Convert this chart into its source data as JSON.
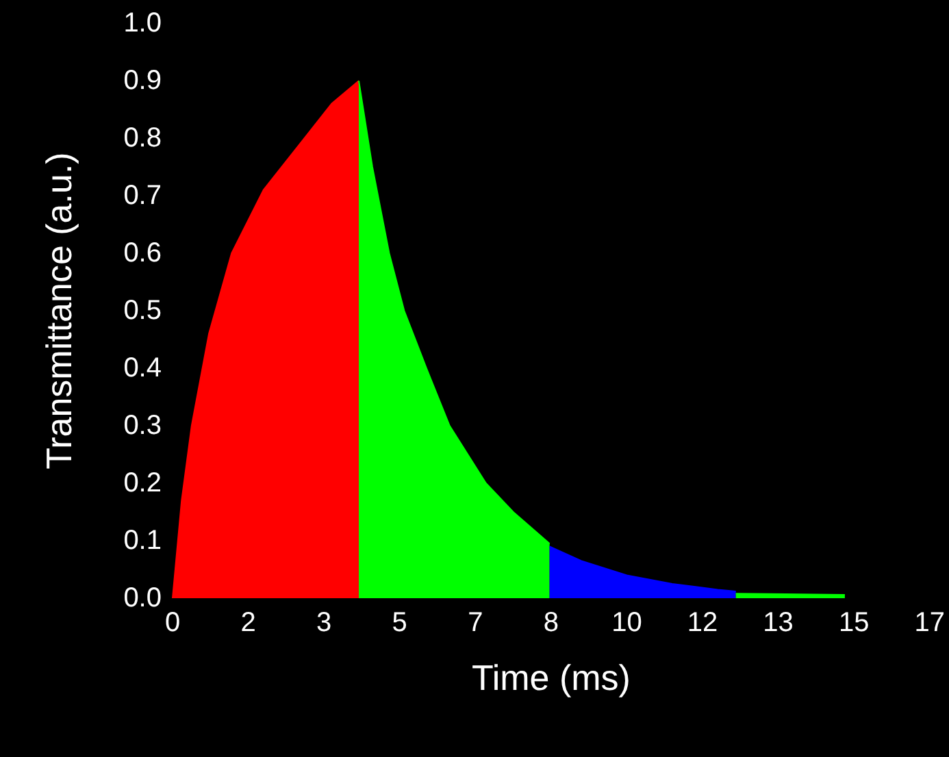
{
  "chart_data": {
    "type": "area",
    "xlabel": "Time (ms)",
    "ylabel": "Transmittance (a.u.)",
    "xlim": [
      0,
      16.667
    ],
    "ylim": [
      0,
      1
    ],
    "xticks": [
      {
        "value": 0,
        "label": "0"
      },
      {
        "value": 1.667,
        "label": "2"
      },
      {
        "value": 3.333,
        "label": "3"
      },
      {
        "value": 5,
        "label": "5"
      },
      {
        "value": 6.667,
        "label": "7"
      },
      {
        "value": 8.333,
        "label": "8"
      },
      {
        "value": 10,
        "label": "10"
      },
      {
        "value": 11.667,
        "label": "12"
      },
      {
        "value": 13.333,
        "label": "13"
      },
      {
        "value": 15,
        "label": "15"
      },
      {
        "value": 16.667,
        "label": "17"
      }
    ],
    "yticks": [
      {
        "value": 0,
        "label": "0.0"
      },
      {
        "value": 0.1,
        "label": "0.1"
      },
      {
        "value": 0.2,
        "label": "0.2"
      },
      {
        "value": 0.3,
        "label": "0.3"
      },
      {
        "value": 0.4,
        "label": "0.4"
      },
      {
        "value": 0.5,
        "label": "0.5"
      },
      {
        "value": 0.6,
        "label": "0.6"
      },
      {
        "value": 0.7,
        "label": "0.7"
      },
      {
        "value": 0.8,
        "label": "0.8"
      },
      {
        "value": 0.9,
        "label": "0.9"
      },
      {
        "value": 1,
        "label": "1.0"
      }
    ],
    "grid": false,
    "series": [
      {
        "color": "#ff0000",
        "x": [
          0,
          0.2,
          0.42,
          0.8,
          1.3,
          2,
          2.9,
          3.5,
          4.1
        ],
        "values": [
          0,
          0.17,
          0.3,
          0.46,
          0.6,
          0.71,
          0.8,
          0.86,
          0.9
        ]
      },
      {
        "color": "#00ff00",
        "x": [
          4.1,
          4.4,
          4.77,
          5.1,
          5.59,
          6.1,
          6.9,
          7.5,
          8.3
        ],
        "values": [
          0.9,
          0.75,
          0.6,
          0.5,
          0.4,
          0.3,
          0.2,
          0.15,
          0.095
        ]
      },
      {
        "color": "#0000ff",
        "x": [
          8.3,
          9,
          10,
          11,
          12,
          12.4
        ],
        "values": [
          0.09,
          0.065,
          0.04,
          0.025,
          0.015,
          0.012
        ]
      },
      {
        "color": "#00ff00",
        "x": [
          12.4,
          13.5,
          14.8
        ],
        "values": [
          0.008,
          0.007,
          0.006
        ]
      }
    ]
  }
}
